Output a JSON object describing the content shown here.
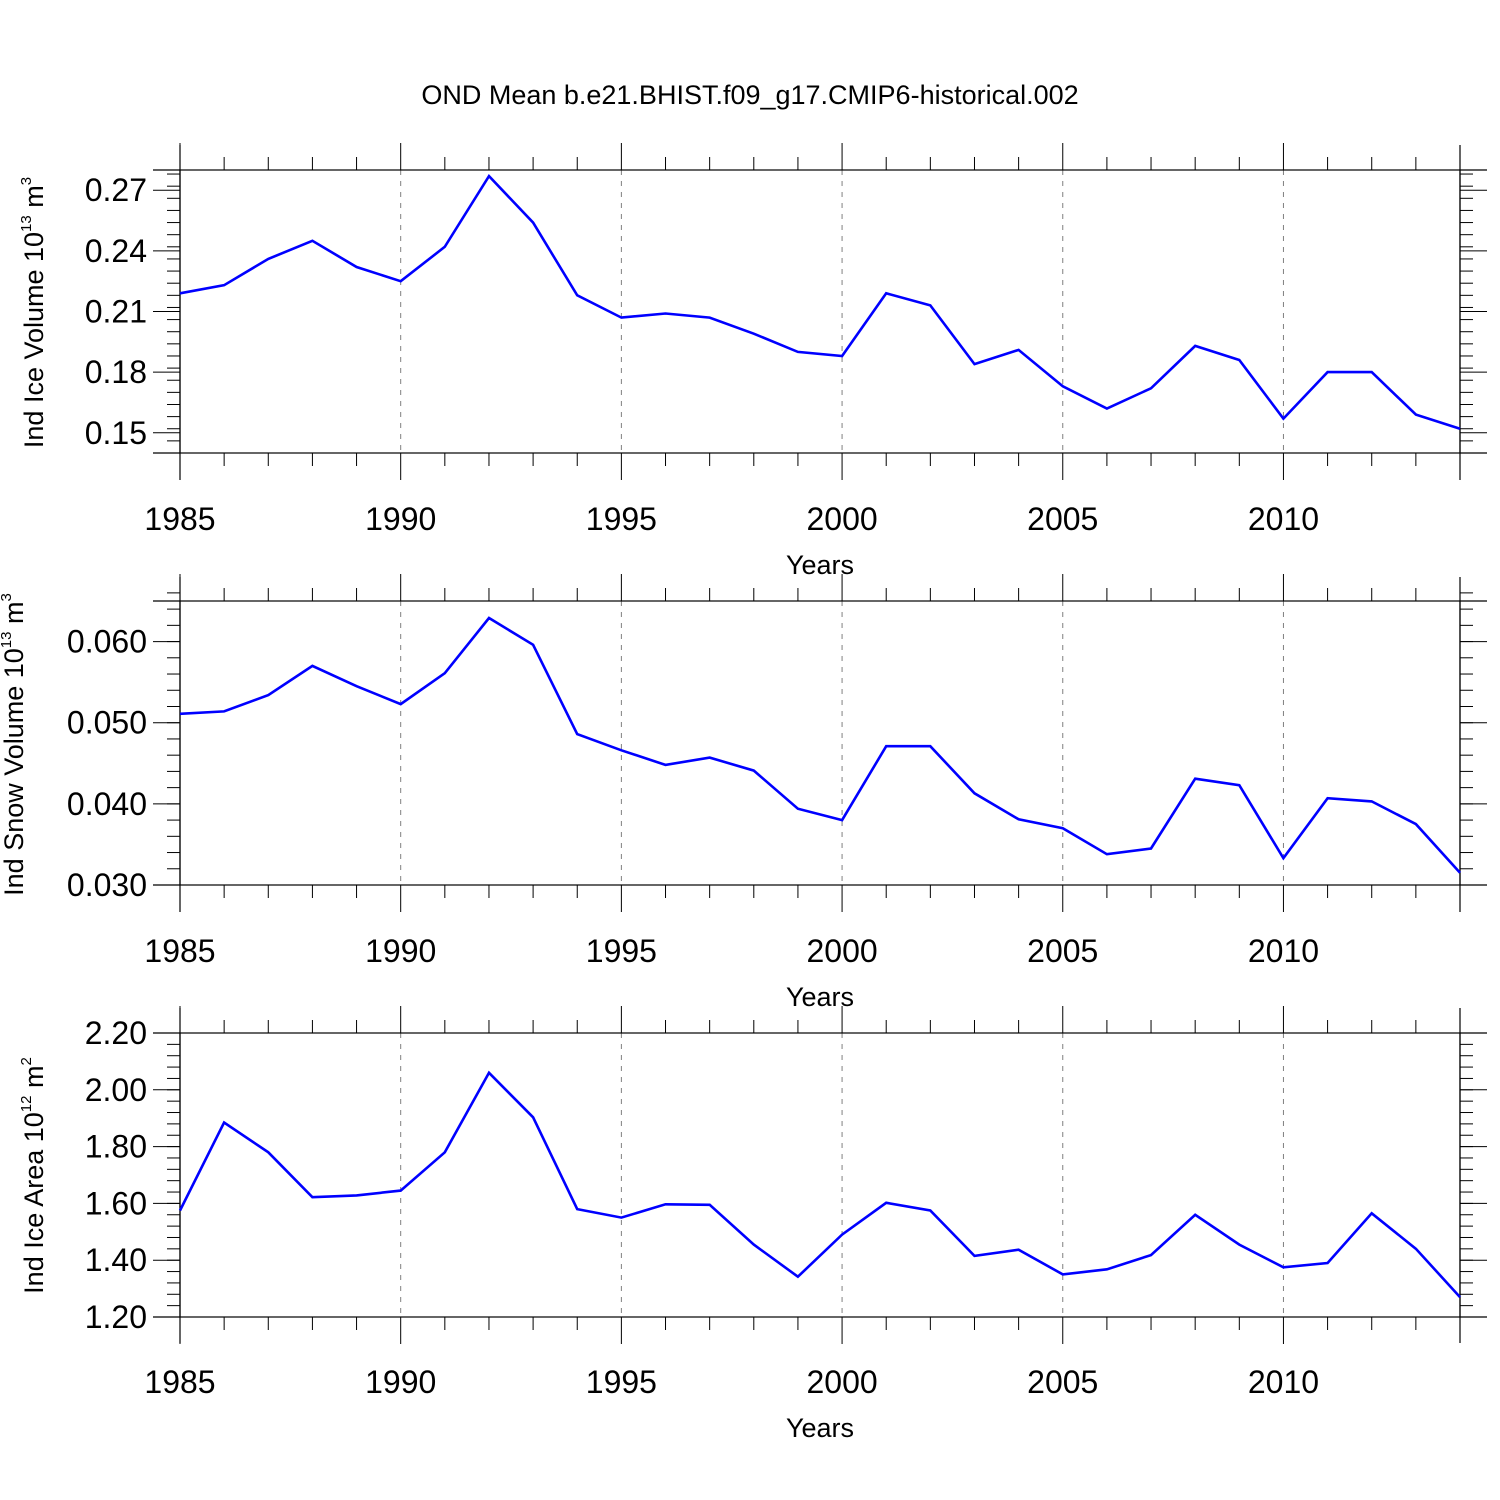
{
  "title": "OND Mean b.e21.BHIST.f09_g17.CMIP6-historical.002",
  "colors": {
    "line": "#0000ff",
    "axis": "#000000",
    "grid": "#808080"
  },
  "chart_data": [
    {
      "type": "line",
      "ylabel_main": "Ind Ice Volume 10",
      "ylabel_exp": "13",
      "ylabel_unit": " m",
      "ylabel_unit_exp": "3",
      "xlabel": "Years",
      "ylim": [
        0.14,
        0.28
      ],
      "xlim": [
        1985,
        2014
      ],
      "yticks": [
        0.15,
        0.18,
        0.21,
        0.24,
        0.27
      ],
      "ytick_labels": [
        "0.15",
        "0.18",
        "0.21",
        "0.24",
        "0.27"
      ],
      "yminor_step": 0.006,
      "xticks": [
        1985,
        1990,
        1995,
        2000,
        2005,
        2010
      ],
      "xtick_labels": [
        "1985",
        "1990",
        "1995",
        "2000",
        "2005",
        "2010"
      ],
      "grid": "dashed vertical at major x ticks",
      "series": [
        {
          "name": "Ind Ice Volume",
          "x": [
            1985,
            1986,
            1987,
            1988,
            1989,
            1990,
            1991,
            1992,
            1993,
            1994,
            1995,
            1996,
            1997,
            1998,
            1999,
            2000,
            2001,
            2002,
            2003,
            2004,
            2005,
            2006,
            2007,
            2008,
            2009,
            2010,
            2011,
            2012,
            2013,
            2014
          ],
          "values": [
            0.219,
            0.223,
            0.236,
            0.245,
            0.232,
            0.225,
            0.242,
            0.277,
            0.254,
            0.218,
            0.207,
            0.209,
            0.207,
            0.199,
            0.19,
            0.188,
            0.219,
            0.213,
            0.184,
            0.191,
            0.173,
            0.162,
            0.172,
            0.193,
            0.186,
            0.157,
            0.18,
            0.18,
            0.159,
            0.152
          ]
        }
      ]
    },
    {
      "type": "line",
      "ylabel_main": "Ind Snow Volume 10",
      "ylabel_exp": "13",
      "ylabel_unit": " m",
      "ylabel_unit_exp": "3",
      "xlabel": "Years",
      "ylim": [
        0.03,
        0.065
      ],
      "xlim": [
        1985,
        2014
      ],
      "yticks": [
        0.03,
        0.04,
        0.05,
        0.06
      ],
      "ytick_labels": [
        "0.030",
        "0.040",
        "0.050",
        "0.060"
      ],
      "yminor_step": 0.002,
      "xticks": [
        1985,
        1990,
        1995,
        2000,
        2005,
        2010
      ],
      "xtick_labels": [
        "1985",
        "1990",
        "1995",
        "2000",
        "2005",
        "2010"
      ],
      "grid": "dashed vertical at major x ticks",
      "series": [
        {
          "name": "Ind Snow Volume",
          "x": [
            1985,
            1986,
            1987,
            1988,
            1989,
            1990,
            1991,
            1992,
            1993,
            1994,
            1995,
            1996,
            1997,
            1998,
            1999,
            2000,
            2001,
            2002,
            2003,
            2004,
            2005,
            2006,
            2007,
            2008,
            2009,
            2010,
            2011,
            2012,
            2013,
            2014
          ],
          "values": [
            0.0511,
            0.0514,
            0.0534,
            0.057,
            0.0545,
            0.0523,
            0.0561,
            0.0629,
            0.0596,
            0.0486,
            0.0466,
            0.0448,
            0.0457,
            0.0441,
            0.0394,
            0.038,
            0.0471,
            0.0471,
            0.0413,
            0.0381,
            0.037,
            0.0338,
            0.0345,
            0.0431,
            0.0423,
            0.0333,
            0.0407,
            0.0403,
            0.0375,
            0.0315
          ]
        }
      ]
    },
    {
      "type": "line",
      "ylabel_main": "Ind Ice Area 10",
      "ylabel_exp": "12",
      "ylabel_unit": " m",
      "ylabel_unit_exp": "2",
      "xlabel": "Years",
      "ylim": [
        1.2,
        2.2
      ],
      "xlim": [
        1985,
        2014
      ],
      "yticks": [
        1.2,
        1.4,
        1.6,
        1.8,
        2.0,
        2.2
      ],
      "ytick_labels": [
        "1.20",
        "1.40",
        "1.60",
        "1.80",
        "2.00",
        "2.20"
      ],
      "yminor_step": 0.04,
      "xticks": [
        1985,
        1990,
        1995,
        2000,
        2005,
        2010
      ],
      "xtick_labels": [
        "1985",
        "1990",
        "1995",
        "2000",
        "2005",
        "2010"
      ],
      "grid": "dashed vertical at major x ticks",
      "series": [
        {
          "name": "Ind Ice Area",
          "x": [
            1985,
            1986,
            1987,
            1988,
            1989,
            1990,
            1991,
            1992,
            1993,
            1994,
            1995,
            1996,
            1997,
            1998,
            1999,
            2000,
            2001,
            2002,
            2003,
            2004,
            2005,
            2006,
            2007,
            2008,
            2009,
            2010,
            2011,
            2012,
            2013,
            2014
          ],
          "values": [
            1.575,
            1.885,
            1.78,
            1.622,
            1.628,
            1.645,
            1.78,
            2.06,
            1.903,
            1.58,
            1.55,
            1.597,
            1.595,
            1.455,
            1.342,
            1.49,
            1.602,
            1.575,
            1.415,
            1.437,
            1.35,
            1.368,
            1.418,
            1.56,
            1.455,
            1.375,
            1.39,
            1.565,
            1.44,
            1.27
          ]
        }
      ]
    }
  ]
}
